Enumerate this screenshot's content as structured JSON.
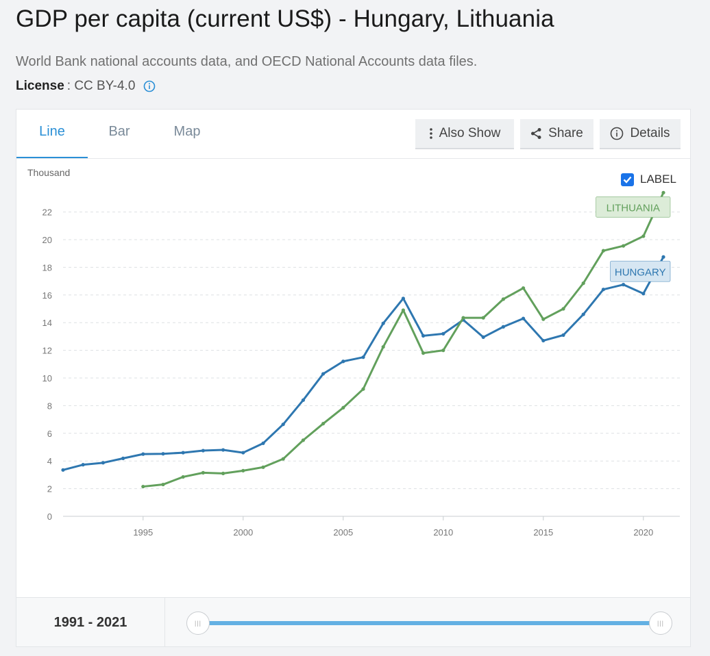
{
  "header": {
    "title": "GDP per capita (current US$) - Hungary, Lithuania",
    "source": "World Bank national accounts data, and OECD National Accounts data files.",
    "license_label": "License",
    "license_value": ": CC BY-4.0"
  },
  "tabs": [
    {
      "label": "Line",
      "active": true
    },
    {
      "label": "Bar",
      "active": false
    },
    {
      "label": "Map",
      "active": false
    }
  ],
  "toolbar": {
    "also_show": "Also Show",
    "share": "Share",
    "details": "Details"
  },
  "label_toggle": {
    "text": "LABEL",
    "checked": true
  },
  "range": {
    "text": "1991 - 2021",
    "start": 1991,
    "end": 2021
  },
  "colors": {
    "hungary": "#2e77b0",
    "lithuania": "#62a05c",
    "accent": "#2a8fd6"
  },
  "chart_data": {
    "type": "line",
    "unit_label": "Thousand",
    "x": [
      1991,
      1992,
      1993,
      1994,
      1995,
      1996,
      1997,
      1998,
      1999,
      2000,
      2001,
      2002,
      2003,
      2004,
      2005,
      2006,
      2007,
      2008,
      2009,
      2010,
      2011,
      2012,
      2013,
      2014,
      2015,
      2016,
      2017,
      2018,
      2019,
      2020,
      2021
    ],
    "xlim": [
      1991,
      2021
    ],
    "ylim": [
      0,
      23.5
    ],
    "x_ticks": [
      1995,
      2000,
      2005,
      2010,
      2015,
      2020
    ],
    "y_ticks": [
      0,
      2,
      4,
      6,
      8,
      10,
      12,
      14,
      16,
      18,
      20,
      22
    ],
    "grid": true,
    "series": [
      {
        "name": "HUNGARY",
        "color": "#2e77b0",
        "label_bg": "#d6e6f2",
        "values": [
          3.35,
          3.73,
          3.87,
          4.19,
          4.5,
          4.52,
          4.6,
          4.75,
          4.8,
          4.6,
          5.28,
          6.65,
          8.4,
          10.3,
          11.2,
          11.5,
          13.95,
          15.75,
          13.05,
          13.2,
          14.2,
          12.95,
          13.7,
          14.3,
          12.7,
          13.1,
          14.6,
          16.4,
          16.75,
          16.1,
          18.75
        ]
      },
      {
        "name": "LITHUANIA",
        "color": "#62a05c",
        "label_bg": "#dcecd8",
        "values": [
          null,
          null,
          null,
          null,
          2.15,
          2.3,
          2.85,
          3.15,
          3.1,
          3.3,
          3.55,
          4.15,
          5.5,
          6.7,
          7.85,
          9.2,
          12.25,
          14.9,
          11.8,
          12.0,
          14.35,
          14.35,
          15.7,
          16.5,
          14.25,
          15.0,
          16.85,
          19.2,
          19.55,
          20.25,
          23.4
        ]
      }
    ]
  }
}
